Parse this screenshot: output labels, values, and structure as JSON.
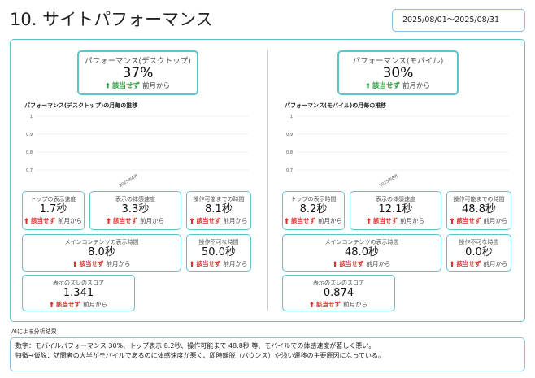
{
  "header": {
    "title": "10. サイトパフォーマンス",
    "date_range": "2025/08/01～2025/08/31"
  },
  "panels": [
    {
      "summary": {
        "label": "パフォーマンス(デスクトップ)",
        "value": "37%",
        "status": "該当せず",
        "suffix": "前月から"
      },
      "chart": {
        "title": "パフォーマンス(デスクトップ)の月毎の推移",
        "yticks": [
          1,
          0.9,
          0.8,
          0.7
        ],
        "categories": [
          "2025年8月"
        ]
      },
      "metrics": [
        {
          "label": "トップの表示速度",
          "value": "1.7秒",
          "status": "該当せず",
          "suffix": "前月から"
        },
        {
          "label": "表示の体感速度",
          "value": "3.3秒",
          "status": "該当せず",
          "suffix": "前月から"
        },
        {
          "label": "操作可能までの時間",
          "value": "8.1秒",
          "status": "該当せず",
          "suffix": "前月から"
        },
        {
          "label": "メインコンテンツの表示時間",
          "value": "8.0秒",
          "status": "該当せず",
          "suffix": "前月から"
        },
        {
          "label": "操作不可な時間",
          "value": "50.0秒",
          "status": "該当せず",
          "suffix": "前月から"
        },
        {
          "label": "表示のズレのスコア",
          "value": "1.341",
          "status": "該当せず",
          "suffix": "前月から"
        }
      ]
    },
    {
      "summary": {
        "label": "パフォーマンス(モバイル)",
        "value": "30%",
        "status": "該当せず",
        "suffix": "前月から"
      },
      "chart": {
        "title": "パフォーマンス(モバイル)の月毎の推移",
        "yticks": [
          1,
          0.9,
          0.8,
          0.7
        ],
        "categories": [
          "2025年8月"
        ]
      },
      "metrics": [
        {
          "label": "トップの表示時間",
          "value": "8.2秒",
          "status": "該当せず",
          "suffix": "前月から"
        },
        {
          "label": "表示の体感速度",
          "value": "12.1秒",
          "status": "該当せず",
          "suffix": "前月から"
        },
        {
          "label": "操作可能までの時間",
          "value": "48.8秒",
          "status": "該当せず",
          "suffix": "前月から"
        },
        {
          "label": "メインコンテンツの表示時間",
          "value": "48.0秒",
          "status": "該当せず",
          "suffix": "前月から"
        },
        {
          "label": "操作不可な時間",
          "value": "0.0秒",
          "status": "該当せず",
          "suffix": "前月から"
        },
        {
          "label": "表示のズレのスコア",
          "value": "0.874",
          "status": "該当せず",
          "suffix": "前月から"
        }
      ]
    }
  ],
  "ai": {
    "title": "AIによる分析結果",
    "lines": [
      "数字：モバイルパフォーマンス 30%、トップ表示 8.2秒、操作可能まで 48.8秒 等、モバイルでの体感速度が著しく悪い。",
      "特徴→仮説：訪問者の大半がモバイルであるのに体感速度が悪く、即時離脱（バウンス）や浅い遷移の主要原因になっている。"
    ]
  }
}
